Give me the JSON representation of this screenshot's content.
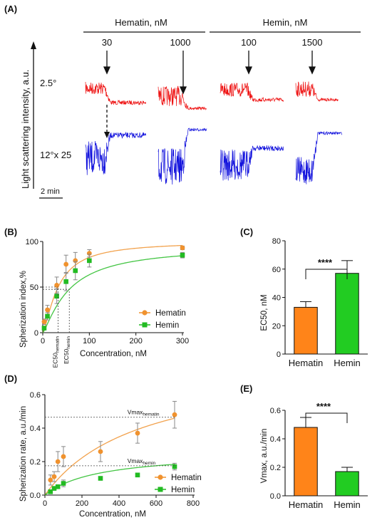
{
  "panel_a": {
    "label": "(A)",
    "ylabel": "Light scattering intensity, a.u.",
    "group_hematin": "Hematin, nM",
    "group_hemin": "Hemin, nM",
    "conc_labels": [
      "30",
      "1000",
      "100",
      "1500"
    ],
    "row_labels": [
      "2.5°",
      "12°x 25"
    ],
    "scale_bar": "2 min",
    "colors": {
      "top": "#ee1111",
      "bottom": "#1212dd"
    }
  },
  "chart_data": [
    {
      "id": "B",
      "label": "(B)",
      "type": "scatter",
      "xlabel": "Concentration, nM",
      "ylabel": "Spherization index,%",
      "xlim": [
        0,
        300
      ],
      "ylim": [
        0,
        100
      ],
      "xticks": [
        "0",
        "100",
        "200",
        "300"
      ],
      "yticks": [
        "0",
        "50",
        "100"
      ],
      "legend_position": "bottom-right",
      "series": [
        {
          "name": "Hematin",
          "color": "#f0922e",
          "marker": "circle",
          "x": [
            3,
            10,
            30,
            50,
            70,
            100,
            300
          ],
          "y": [
            12,
            25,
            52,
            75,
            79,
            87,
            93
          ],
          "err": [
            3,
            5,
            9,
            10,
            9,
            4,
            2
          ],
          "fit": {
            "model": "hill",
            "vmax": 100,
            "ec50": 33,
            "n": 1.4
          }
        },
        {
          "name": "Hemin",
          "color": "#22bb22",
          "marker": "square",
          "x": [
            3,
            10,
            30,
            50,
            70,
            100,
            300
          ],
          "y": [
            5,
            18,
            40,
            56,
            68,
            79,
            85
          ],
          "err": [
            2,
            4,
            8,
            10,
            10,
            7,
            3
          ],
          "fit": {
            "model": "hill",
            "vmax": 95,
            "ec50": 57,
            "n": 1.25
          }
        }
      ],
      "annotations": [
        {
          "text": "EC50",
          "subscript": "hematin",
          "x": 33
        },
        {
          "text": "EC50",
          "subscript": "hemin",
          "x": 57
        }
      ]
    },
    {
      "id": "C",
      "label": "(C)",
      "type": "bar",
      "ylabel": "EC50, nM",
      "ylim": [
        0,
        80
      ],
      "yticks": [
        "0",
        "20",
        "40",
        "60",
        "80"
      ],
      "categories": [
        "Hematin",
        "Hemin"
      ],
      "values": [
        33,
        57
      ],
      "errors": [
        4,
        9
      ],
      "colors": [
        "#ff8419",
        "#22cc22"
      ],
      "significance": "****"
    },
    {
      "id": "D",
      "label": "(D)",
      "type": "scatter",
      "xlabel": "Concentration, nM",
      "ylabel": "Spherization rate, a.u./min",
      "xlim": [
        0,
        800
      ],
      "ylim": [
        0,
        0.6
      ],
      "xticks": [
        "0",
        "200",
        "400",
        "600",
        "800"
      ],
      "yticks": [
        "0.0",
        "0.2",
        "0.4",
        "0.6"
      ],
      "legend_position": "bottom-right",
      "series": [
        {
          "name": "Hematin",
          "color": "#f0922e",
          "marker": "circle",
          "x": [
            30,
            50,
            70,
            100,
            300,
            500,
            700
          ],
          "y": [
            0.09,
            0.11,
            0.2,
            0.23,
            0.26,
            0.37,
            0.48
          ],
          "err": [
            0.03,
            0.03,
            0.06,
            0.06,
            0.06,
            0.06,
            0.08
          ],
          "fit": {
            "model": "mm",
            "vmax": 0.8,
            "km": 520
          }
        },
        {
          "name": "Hemin",
          "color": "#22bb22",
          "marker": "square",
          "x": [
            30,
            50,
            70,
            100,
            300,
            500,
            700
          ],
          "y": [
            0.02,
            0.04,
            0.05,
            0.07,
            0.1,
            0.12,
            0.17
          ],
          "err": [
            0.01,
            0.01,
            0.01,
            0.02,
            0.01,
            0.01,
            0.02
          ],
          "fit": {
            "model": "mm",
            "vmax": 0.26,
            "km": 290
          }
        }
      ],
      "annotations": [
        {
          "text": "Vmax",
          "subscript": "hematin",
          "y": 0.465
        },
        {
          "text": "Vmax",
          "subscript": "hemin",
          "y": 0.175
        }
      ]
    },
    {
      "id": "E",
      "label": "(E)",
      "type": "bar",
      "ylabel": "Vmax, a.u./min",
      "ylim": [
        0,
        0.6
      ],
      "yticks": [
        "0.0",
        "0.2",
        "0.4",
        "0.6"
      ],
      "categories": [
        "Hematin",
        "Hemin"
      ],
      "values": [
        0.48,
        0.17
      ],
      "errors": [
        0.07,
        0.03
      ],
      "colors": [
        "#ff8419",
        "#22cc22"
      ],
      "significance": "****"
    }
  ]
}
